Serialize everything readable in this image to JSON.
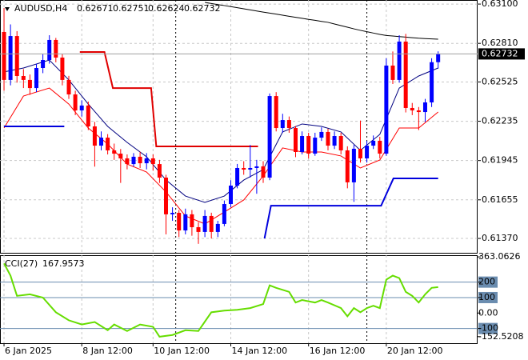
{
  "chart_data": [
    {
      "type": "candlestick",
      "title": "AUDUSD,H4",
      "up_color": "#0000ff",
      "down_color": "#ff0000",
      "open": [
        0.62894,
        0.6254,
        0.62864,
        0.62569,
        0.6254,
        0.6248,
        0.62628,
        0.62687,
        0.62835,
        0.62705,
        0.6254,
        0.62433,
        0.62315,
        0.62351,
        0.62197,
        0.62055,
        0.62114,
        0.6202,
        0.61996,
        0.61961,
        0.61919,
        0.61973,
        0.61925,
        0.61961,
        0.61919,
        0.61819,
        0.61548,
        0.61559,
        0.61429,
        0.61548,
        0.61453,
        0.61418,
        0.61536,
        0.61418,
        0.61477,
        0.61624,
        0.6176,
        0.6189,
        0.61878,
        0.6189,
        0.61902,
        0.61819,
        0.62421,
        0.62185,
        0.62244,
        0.62185,
        0.62008,
        0.62126,
        0.61996,
        0.62114,
        0.62156,
        0.62055,
        0.62126,
        0.6202,
        0.61784,
        0.62032,
        0.61961,
        0.62055,
        0.62091,
        0.61996,
        0.62646,
        0.6254,
        0.62823,
        0.62333,
        0.62315,
        0.62303,
        0.62374,
        0.62671
      ],
      "high": [
        0.63071,
        0.6295,
        0.629,
        0.6262,
        0.6258,
        0.6266,
        0.6273,
        0.6287,
        0.6285,
        0.6273,
        0.6257,
        0.6246,
        0.6239,
        0.6238,
        0.6223,
        0.6216,
        0.6214,
        0.6207,
        0.6203,
        0.6199,
        0.62,
        0.6201,
        0.62,
        0.6199,
        0.6195,
        0.6184,
        0.616,
        0.6158,
        0.6159,
        0.6158,
        0.6149,
        0.6158,
        0.6156,
        0.615,
        0.6165,
        0.618,
        0.6192,
        0.6194,
        0.6206,
        0.6195,
        0.6194,
        0.6244,
        0.6245,
        0.6229,
        0.6227,
        0.622,
        0.6216,
        0.6215,
        0.6215,
        0.6219,
        0.6218,
        0.6216,
        0.6215,
        0.6205,
        0.6206,
        0.6224,
        0.6209,
        0.6213,
        0.6212,
        0.627,
        0.6275,
        0.6287,
        0.6288,
        0.6237,
        0.6234,
        0.624,
        0.627,
        0.62751
      ],
      "low": [
        0.6246,
        0.625,
        0.6252,
        0.6248,
        0.6243,
        0.6245,
        0.6259,
        0.6266,
        0.6267,
        0.625,
        0.624,
        0.6228,
        0.6227,
        0.6217,
        0.619,
        0.6202,
        0.6199,
        0.6195,
        0.6178,
        0.6188,
        0.619,
        0.6189,
        0.6188,
        0.6187,
        0.6178,
        0.614,
        0.615,
        0.6138,
        0.614,
        0.6139,
        0.6133,
        0.6138,
        0.6137,
        0.6138,
        0.6146,
        0.616,
        0.6174,
        0.6184,
        0.6182,
        0.617,
        0.6178,
        0.618,
        0.6216,
        0.6215,
        0.6215,
        0.6197,
        0.6199,
        0.6196,
        0.6198,
        0.6209,
        0.6202,
        0.6203,
        0.6199,
        0.6174,
        0.6164,
        0.6193,
        0.6193,
        0.6203,
        0.6196,
        0.6198,
        0.6251,
        0.6252,
        0.623,
        0.6228,
        0.6217,
        0.6223,
        0.6234,
        0.62624
      ],
      "close": [
        0.6254,
        0.62864,
        0.62569,
        0.6254,
        0.6248,
        0.62628,
        0.62687,
        0.62835,
        0.62705,
        0.6254,
        0.62433,
        0.62315,
        0.62351,
        0.62197,
        0.62055,
        0.62114,
        0.6202,
        0.61996,
        0.61961,
        0.61919,
        0.61973,
        0.61925,
        0.61961,
        0.61919,
        0.61819,
        0.61548,
        0.61559,
        0.61429,
        0.61548,
        0.61453,
        0.61418,
        0.61536,
        0.61418,
        0.61477,
        0.61624,
        0.6176,
        0.6189,
        0.61878,
        0.6189,
        0.61902,
        0.61819,
        0.62421,
        0.62185,
        0.62244,
        0.62185,
        0.62008,
        0.62126,
        0.61996,
        0.62114,
        0.62156,
        0.62055,
        0.62126,
        0.6202,
        0.61784,
        0.62032,
        0.61961,
        0.62055,
        0.62091,
        0.61996,
        0.62646,
        0.6254,
        0.62823,
        0.62333,
        0.62315,
        0.62303,
        0.62374,
        0.62671,
        0.62732
      ],
      "lines": [
        {
          "color": "#000000",
          "x": [
            31,
            32,
            33,
            34,
            35,
            36,
            37,
            38,
            39,
            40,
            41,
            42,
            43,
            44,
            45,
            46,
            47,
            48,
            49,
            50,
            51,
            52,
            53,
            54,
            55,
            56,
            57,
            58,
            59,
            60,
            61,
            62,
            63,
            64,
            65,
            66,
            67
          ],
          "values": [
            0.63112,
            0.63104,
            0.63096,
            0.63089,
            0.63081,
            0.63073,
            0.63065,
            0.63057,
            0.63049,
            0.63041,
            0.63033,
            0.63026,
            0.63018,
            0.6301,
            0.63002,
            0.62995,
            0.62987,
            0.6298,
            0.62972,
            0.62965,
            0.62953,
            0.62941,
            0.62929,
            0.62917,
            0.62906,
            0.62896,
            0.62886,
            0.62876,
            0.62868,
            0.62864,
            0.6286,
            0.62856,
            0.62852,
            0.62848,
            0.62845,
            0.62843,
            0.62841
          ]
        },
        {
          "color": "#000080",
          "x": [
            0,
            3,
            7,
            10,
            13,
            16,
            19,
            22,
            25,
            28,
            31,
            34,
            37,
            40,
            43,
            46,
            49,
            52,
            55,
            58,
            61,
            64,
            67
          ],
          "values": [
            0.62599,
            0.62628,
            0.62687,
            0.6254,
            0.62362,
            0.62197,
            0.62079,
            0.61973,
            0.61801,
            0.61683,
            0.61636,
            0.61683,
            0.61801,
            0.61878,
            0.62156,
            0.62215,
            0.62197,
            0.62156,
            0.6202,
            0.62138,
            0.6248,
            0.62569,
            0.62628
          ]
        },
        {
          "color": "#ff0000",
          "x": [
            0,
            3,
            7,
            10,
            13,
            16,
            19,
            22,
            25,
            28,
            31,
            34,
            37,
            40,
            43,
            46,
            49,
            52,
            55,
            58,
            61,
            64,
            67
          ],
          "values": [
            0.62185,
            0.62421,
            0.6248,
            0.62362,
            0.62185,
            0.62067,
            0.61919,
            0.6186,
            0.61713,
            0.61536,
            0.61477,
            0.61565,
            0.61654,
            0.61831,
            0.62038,
            0.62008,
            0.62008,
            0.61979,
            0.6189,
            0.61949,
            0.62185,
            0.62185,
            0.62303
          ]
        },
        {
          "color": "#e00000",
          "width": 2,
          "x": [
            11.7,
            15.5,
            16.8,
            22.7,
            23.5,
            39.2
          ],
          "values": [
            0.62746,
            0.62746,
            0.6248,
            0.6248,
            0.62049,
            0.62049
          ]
        },
        {
          "color": "#0000dd",
          "width": 2,
          "x": [
            0,
            9.3,
            null,
            40.2,
            41.2,
            58.2,
            60.1,
            67
          ],
          "values": [
            0.62197,
            0.62197,
            null,
            0.6137,
            0.61612,
            0.61612,
            0.61813,
            0.61813
          ]
        }
      ],
      "xlim": [
        -0.62,
        73.09
      ],
      "xticks": [
        {
          "value": 0,
          "label": "6 Jan 2025"
        },
        {
          "value": 12,
          "label": "8 Jan 12:00"
        },
        {
          "value": 23,
          "label": "10 Jan 12:00"
        },
        {
          "value": 35,
          "label": "14 Jan 12:00"
        },
        {
          "value": 47,
          "label": "16 Jan 12:00"
        },
        {
          "value": 59,
          "label": "20 Jan 12:00"
        }
      ],
      "separators": [
        26.5,
        56
      ],
      "ylim": [
        0.61264,
        0.6313
      ],
      "yticks": [
        {
          "value": 0.631,
          "label": "0.63100"
        },
        {
          "value": 0.6281,
          "label": "0.62810"
        },
        {
          "value": 0.62525,
          "label": "0.62525"
        },
        {
          "value": 0.62235,
          "label": "0.62235"
        },
        {
          "value": 0.61945,
          "label": "0.61945"
        },
        {
          "value": 0.61655,
          "label": "0.61655"
        },
        {
          "value": 0.6137,
          "label": "0.61370"
        }
      ],
      "grid": true
    },
    {
      "type": "line",
      "title": "CCI(27)",
      "color": "#66dd00",
      "x": [
        0,
        1,
        2,
        4,
        6,
        8,
        10,
        12,
        14,
        16,
        17,
        19,
        21,
        23,
        24,
        26,
        28,
        30,
        32,
        34,
        36,
        38,
        40,
        41,
        42,
        44,
        45,
        46,
        48,
        49,
        50,
        52,
        53,
        54,
        55,
        56,
        57,
        58,
        59,
        60,
        61,
        62,
        63,
        64,
        65,
        66,
        67
      ],
      "values": [
        321,
        242,
        111,
        121,
        100,
        5,
        -47,
        -74,
        -58,
        -111,
        -74,
        -116,
        -74,
        -89,
        -153,
        -142,
        -111,
        -116,
        5,
        16,
        21,
        32,
        58,
        179,
        163,
        137,
        68,
        84,
        68,
        84,
        68,
        32,
        -21,
        32,
        5,
        32,
        47,
        32,
        216,
        242,
        226,
        137,
        111,
        68,
        121,
        163,
        167.9573
      ],
      "ylim": [
        -195,
        374
      ],
      "yticks": [
        363.0626,
        200,
        100,
        {
          "value": 0,
          "label": "0.00"
        },
        -100,
        -152.5208
      ],
      "levels": [
        200,
        100,
        -100
      ]
    }
  ]
}
